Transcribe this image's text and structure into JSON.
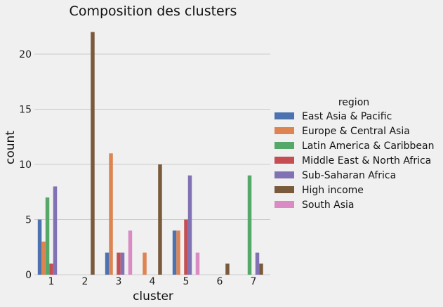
{
  "chart_data": {
    "type": "bar",
    "title": "Composition des clusters",
    "xlabel": "cluster",
    "ylabel": "count",
    "categories": [
      "1",
      "2",
      "3",
      "4",
      "5",
      "6",
      "7"
    ],
    "ylim": [
      0,
      23
    ],
    "yticks": [
      0,
      5,
      10,
      15,
      20
    ],
    "grid": "horizontal",
    "legend": {
      "title": "region",
      "placement": "right"
    },
    "series": [
      {
        "name": "East Asia & Pacific",
        "color": "#4c72b0",
        "values": [
          5,
          0,
          2,
          0,
          4,
          0,
          0
        ]
      },
      {
        "name": "Europe & Central Asia",
        "color": "#dd8452",
        "values": [
          3,
          0,
          11,
          2,
          4,
          0,
          0
        ]
      },
      {
        "name": "Latin America & Caribbean",
        "color": "#55a868",
        "values": [
          7,
          0,
          0,
          0,
          0,
          0,
          9
        ]
      },
      {
        "name": "Middle East & North Africa",
        "color": "#c44e52",
        "values": [
          1,
          0,
          2,
          0,
          5,
          0,
          0
        ]
      },
      {
        "name": "Sub-Saharan Africa",
        "color": "#8172b3",
        "values": [
          8,
          0,
          2,
          0,
          9,
          0,
          2
        ]
      },
      {
        "name": "High income",
        "color": "#7a5a3c",
        "values": [
          0,
          22,
          0,
          10,
          0,
          1,
          1
        ]
      },
      {
        "name": "South Asia",
        "color": "#da8bc3",
        "values": [
          0,
          0,
          4,
          0,
          2,
          0,
          0
        ]
      }
    ]
  }
}
